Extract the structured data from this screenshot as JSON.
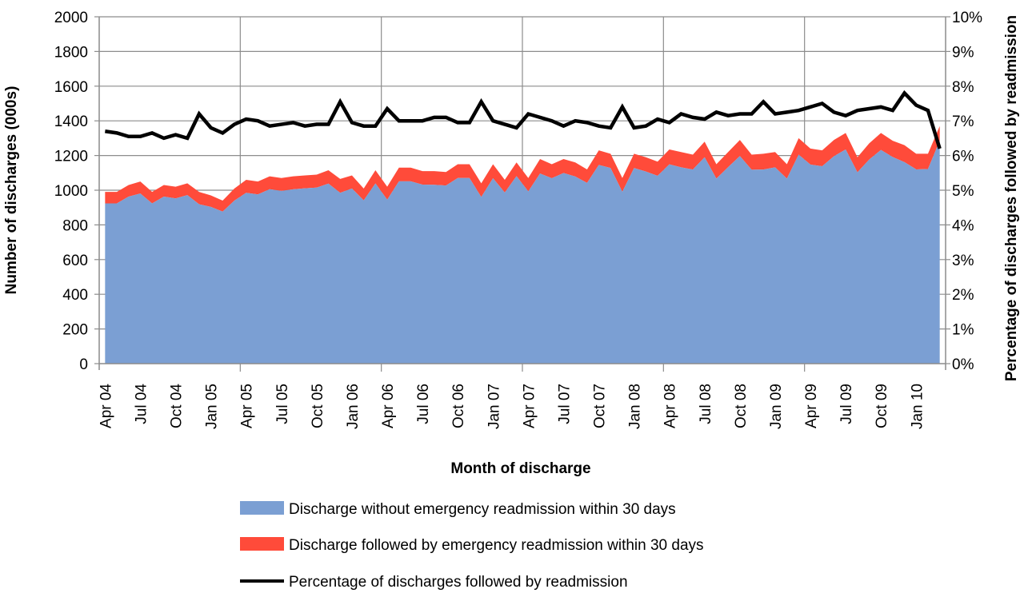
{
  "chart_data": {
    "type": "area",
    "stacked": true,
    "xlabel": "Month of discharge",
    "ylabel": "Number of discharges (000s)",
    "y2label": "Percentage of discharges followed by readmission",
    "ylim": [
      0,
      2000
    ],
    "y_ticks": [
      "0",
      "200",
      "400",
      "600",
      "800",
      "1000",
      "1200",
      "1400",
      "1600",
      "1800",
      "2000"
    ],
    "y2lim": [
      0,
      10
    ],
    "y2_ticks": [
      "0%",
      "1%",
      "2%",
      "3%",
      "4%",
      "5%",
      "6%",
      "7%",
      "8%",
      "9%",
      "10%"
    ],
    "grid": true,
    "legend_position": "bottom",
    "months": [
      "Apr 04",
      "May 04",
      "Jun 04",
      "Jul 04",
      "Aug 04",
      "Sep 04",
      "Oct 04",
      "Nov 04",
      "Dec 04",
      "Jan 05",
      "Feb 05",
      "Mar 05",
      "Apr 05",
      "May 05",
      "Jun 05",
      "Jul 05",
      "Aug 05",
      "Sep 05",
      "Oct 05",
      "Nov 05",
      "Dec 05",
      "Jan 06",
      "Feb 06",
      "Mar 06",
      "Apr 06",
      "May 06",
      "Jun 06",
      "Jul 06",
      "Aug 06",
      "Sep 06",
      "Oct 06",
      "Nov 06",
      "Dec 06",
      "Jan 07",
      "Feb 07",
      "Mar 07",
      "Apr 07",
      "May 07",
      "Jun 07",
      "Jul 07",
      "Aug 07",
      "Sep 07",
      "Oct 07",
      "Nov 07",
      "Dec 07",
      "Jan 08",
      "Feb 08",
      "Mar 08",
      "Apr 08",
      "May 08",
      "Jun 08",
      "Jul 08",
      "Aug 08",
      "Sep 08",
      "Oct 08",
      "Nov 08",
      "Dec 08",
      "Jan 09",
      "Feb 09",
      "Mar 09",
      "Apr 09",
      "May 09",
      "Jun 09",
      "Jul 09",
      "Aug 09",
      "Sep 09",
      "Oct 09",
      "Nov 09",
      "Dec 09",
      "Jan 10",
      "Feb 10",
      "Mar 10"
    ],
    "x_tick_labels": [
      "Apr 04",
      "Jul 04",
      "Oct 04",
      "Jan 05",
      "Apr 05",
      "Jul 05",
      "Oct 05",
      "Jan 06",
      "Apr 06",
      "Jul 06",
      "Oct 06",
      "Jan 07",
      "Apr 07",
      "Jul 07",
      "Oct 07",
      "Jan 08",
      "Apr 08",
      "Jul 08",
      "Oct 08",
      "Jan 09",
      "Apr 09",
      "Jul 09",
      "Oct 09",
      "Jan 10"
    ],
    "series": [
      {
        "name": "Discharge without emergency readmission within 30 days",
        "color": "#7B9FD3",
        "axis": "left",
        "values": [
          924,
          924,
          963,
          981,
          924,
          963,
          953,
          972,
          919,
          904,
          877,
          940,
          985,
          976,
          1006,
          996,
          1005,
          1011,
          1015,
          1038,
          985,
          1010,
          941,
          1039,
          945,
          1051,
          1051,
          1032,
          1031,
          1027,
          1070,
          1070,
          961,
          1069,
          987,
          1081,
          993,
          1096,
          1069,
          1099,
          1079,
          1042,
          1146,
          1128,
          991,
          1128,
          1108,
          1083,
          1149,
          1132,
          1119,
          1190,
          1067,
          1133,
          1197,
          1118,
          1119,
          1132,
          1067,
          1205,
          1148,
          1138,
          1196,
          1235,
          1103,
          1177,
          1232,
          1191,
          1162,
          1120,
          1122,
          1285
        ]
      },
      {
        "name": "Discharge followed by emergency readmission within 30 days",
        "color": "#FF4B3A",
        "axis": "left",
        "values": [
          66,
          66,
          67,
          69,
          66,
          67,
          67,
          68,
          71,
          66,
          63,
          70,
          75,
          74,
          74,
          74,
          75,
          74,
          75,
          77,
          80,
          75,
          69,
          76,
          75,
          79,
          79,
          78,
          79,
          78,
          80,
          80,
          79,
          81,
          73,
          79,
          77,
          84,
          81,
          81,
          81,
          78,
          84,
          82,
          79,
          82,
          82,
          82,
          86,
          88,
          86,
          90,
          83,
          87,
          93,
          87,
          91,
          88,
          83,
          95,
          92,
          92,
          94,
          95,
          87,
          93,
          98,
          94,
          98,
          90,
          88,
          85
        ]
      },
      {
        "name": "Percentage of discharges followed by readmission",
        "color": "#000000",
        "axis": "right",
        "type": "line",
        "values": [
          6.7,
          6.65,
          6.55,
          6.55,
          6.65,
          6.5,
          6.6,
          6.5,
          7.2,
          6.8,
          6.65,
          6.9,
          7.05,
          7.0,
          6.85,
          6.9,
          6.95,
          6.85,
          6.9,
          6.9,
          7.55,
          6.95,
          6.85,
          6.85,
          7.35,
          7.0,
          7.0,
          7.0,
          7.1,
          7.1,
          6.95,
          6.95,
          7.55,
          7.0,
          6.9,
          6.8,
          7.2,
          7.1,
          7.0,
          6.85,
          7.0,
          6.95,
          6.85,
          6.8,
          7.4,
          6.8,
          6.85,
          7.05,
          6.95,
          7.2,
          7.1,
          7.05,
          7.25,
          7.15,
          7.2,
          7.2,
          7.55,
          7.2,
          7.25,
          7.3,
          7.4,
          7.5,
          7.25,
          7.15,
          7.3,
          7.35,
          7.4,
          7.3,
          7.8,
          7.45,
          7.3,
          6.2
        ]
      }
    ]
  }
}
